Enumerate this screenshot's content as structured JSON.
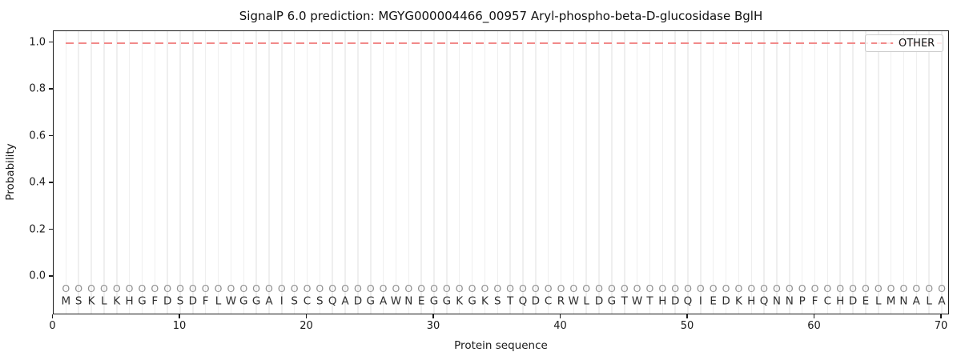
{
  "title": "SignalP 6.0 prediction: MGYG000004466_00957 Aryl-phospho-beta-D-glucosidase BglH",
  "chart_data": {
    "type": "line",
    "title": "SignalP 6.0 prediction: MGYG000004466_00957 Aryl-phospho-beta-D-glucosidase BglH",
    "xlabel": "Protein sequence",
    "ylabel": "Probability",
    "x_ticks": [
      0,
      10,
      20,
      30,
      40,
      50,
      60,
      70
    ],
    "y_ticks": [
      0.0,
      0.2,
      0.4,
      0.6,
      0.8,
      1.0
    ],
    "y_tick_labels": [
      "0.0",
      "0.2",
      "0.4",
      "0.6",
      "0.8",
      "1.0"
    ],
    "xlim": [
      0,
      70.6
    ],
    "ylim": [
      -0.164,
      1.048
    ],
    "grid": "vertical line at every residue position 1-70, no horizontal grid",
    "legend_position": "upper right",
    "series": [
      {
        "name": "OTHER",
        "style": "dashed",
        "color": "#f28a8a",
        "x_start": 1,
        "x_end": 70,
        "y_constant": 1.0,
        "description": "constant probability 1.0 across all 70 residues"
      }
    ],
    "sequence": "MSKLKHGFDSDFLWGGAISCSQADGAWNEGGKGKSTQDCRWLDGTWTHDQIEDKHQNNPFCHDELMNALA",
    "sequence_length": 70,
    "residue_marker_glyph": "O",
    "marker_y": -0.05,
    "letter_y": -0.105
  },
  "legend": {
    "entries": [
      {
        "label": "OTHER"
      }
    ]
  },
  "colors": {
    "line": "#f28a8a",
    "grid": "#efefef",
    "marker": "#919191",
    "letter": "#2f2f2f",
    "axis": "#1a1a1a",
    "legend_border": "#cdcdcd",
    "background": "#ffffff"
  }
}
